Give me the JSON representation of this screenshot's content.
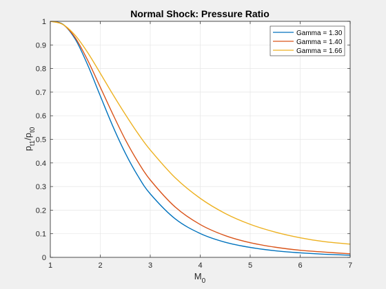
{
  "chart_data": {
    "type": "line",
    "title": "Normal Shock: Pressure Ratio",
    "xlabel": {
      "base": "M",
      "sub": "0"
    },
    "ylabel": {
      "p1": "p",
      "p1_sub": "t1",
      "slash": "/",
      "p2": "p",
      "p2_sub": "t0"
    },
    "xlim": [
      1,
      7
    ],
    "ylim": [
      0,
      1
    ],
    "xticks": [
      1,
      2,
      3,
      4,
      5,
      6,
      7
    ],
    "yticks": [
      0,
      0.1,
      0.2,
      0.3,
      0.4,
      0.5,
      0.6,
      0.7,
      0.8,
      0.9,
      1
    ],
    "grid": true,
    "legend_position": "top-right",
    "series": [
      {
        "name": "Gamma = 1.30",
        "color": "#0072bd",
        "x": [
          1.0,
          1.25,
          1.5,
          1.75,
          2.0,
          2.25,
          2.5,
          2.75,
          3.0,
          3.5,
          4.0,
          4.5,
          5.0,
          5.5,
          6.0,
          6.5,
          7.0
        ],
        "y": [
          1.0,
          0.988,
          0.924,
          0.814,
          0.684,
          0.556,
          0.442,
          0.346,
          0.269,
          0.163,
          0.101,
          0.064,
          0.042,
          0.028,
          0.019,
          0.013,
          0.009
        ]
      },
      {
        "name": "Gamma = 1.40",
        "color": "#d95319",
        "x": [
          1.0,
          1.25,
          1.5,
          1.75,
          2.0,
          2.25,
          2.5,
          2.75,
          3.0,
          3.5,
          4.0,
          4.5,
          5.0,
          5.5,
          6.0,
          6.5,
          7.0
        ],
        "y": [
          1.0,
          0.987,
          0.93,
          0.834,
          0.721,
          0.607,
          0.499,
          0.406,
          0.328,
          0.213,
          0.139,
          0.092,
          0.062,
          0.043,
          0.03,
          0.022,
          0.015
        ]
      },
      {
        "name": "Gamma = 1.66",
        "color": "#edb120",
        "x": [
          1.0,
          1.25,
          1.5,
          1.75,
          2.0,
          2.25,
          2.5,
          2.75,
          3.0,
          3.5,
          4.0,
          4.5,
          5.0,
          5.5,
          6.0,
          6.5,
          7.0
        ],
        "y": [
          1.0,
          0.987,
          0.94,
          0.867,
          0.78,
          0.691,
          0.606,
          0.526,
          0.455,
          0.337,
          0.25,
          0.186,
          0.14,
          0.107,
          0.083,
          0.066,
          0.056
        ]
      }
    ]
  }
}
